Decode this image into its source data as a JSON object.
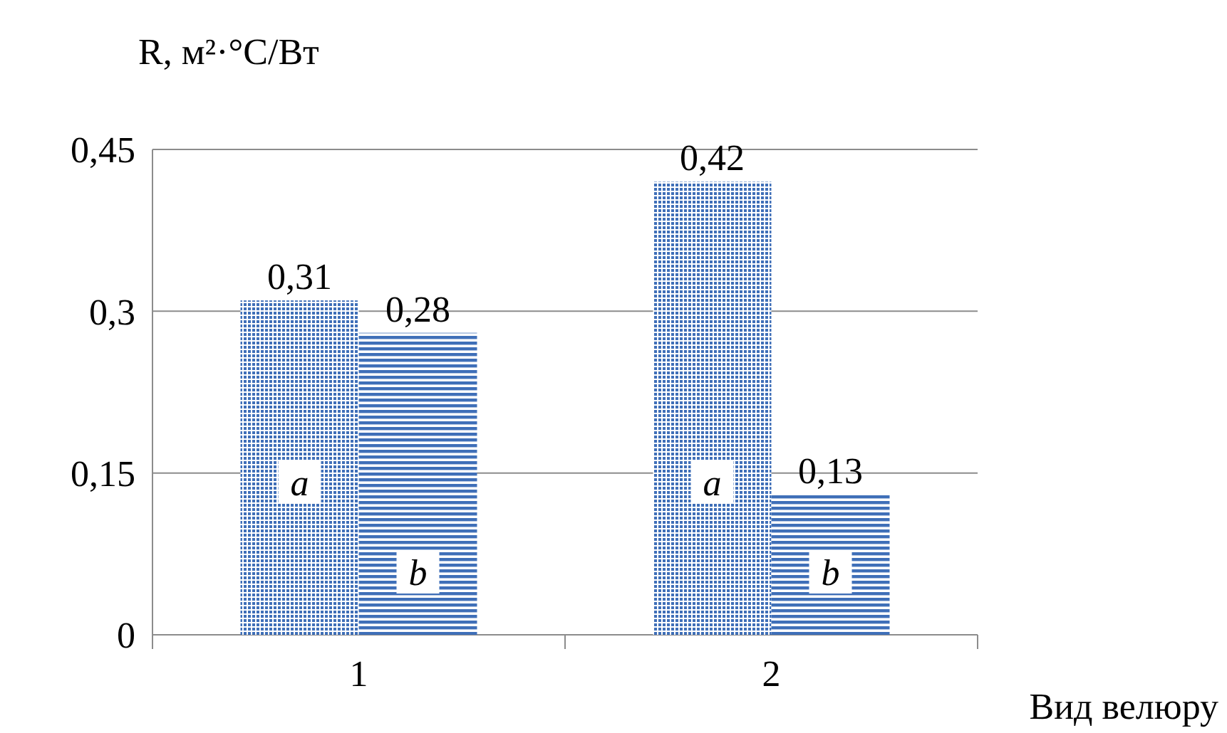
{
  "chart_data": {
    "type": "bar",
    "ylabel": "R, м²·°C/Вт",
    "xlabel": "Вид велюру",
    "categories": [
      "1",
      "2"
    ],
    "series": [
      {
        "name": "a",
        "color": "#3f6fb8",
        "values": [
          0.31,
          0.42
        ],
        "value_labels": [
          "0,31",
          "0,42"
        ]
      },
      {
        "name": "b",
        "color": "#3f6fb8",
        "values": [
          0.28,
          0.13
        ],
        "value_labels": [
          "0,28",
          "0,13"
        ]
      }
    ],
    "ylim": [
      0,
      0.45
    ],
    "yticks": [
      {
        "value": 0,
        "label": "0"
      },
      {
        "value": 0.15,
        "label": "0,15"
      },
      {
        "value": 0.3,
        "label": "0,3"
      },
      {
        "value": 0.45,
        "label": "0,45"
      }
    ],
    "grid": "y",
    "legend": false
  }
}
